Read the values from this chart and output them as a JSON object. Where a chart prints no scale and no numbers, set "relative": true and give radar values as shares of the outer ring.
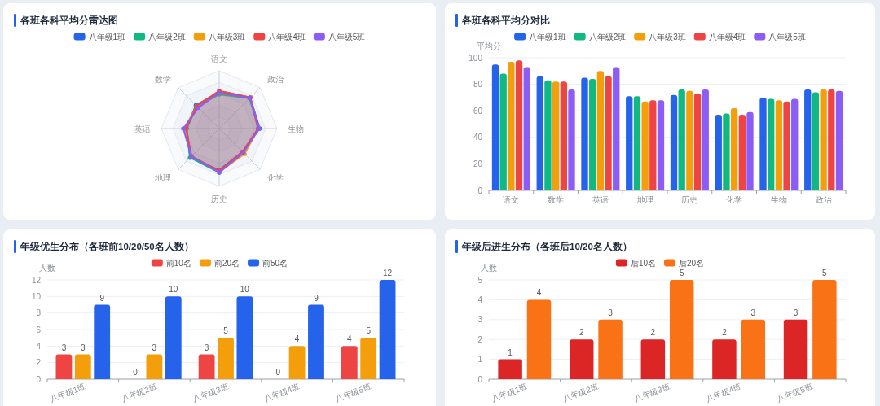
{
  "chart_data": [
    {
      "type": "radar",
      "title": "各班各科平均分雷达图",
      "categories": [
        "语文",
        "政治",
        "生物",
        "化学",
        "历史",
        "地理",
        "英语",
        "数学"
      ],
      "relative": true,
      "grid": true,
      "legend": "top",
      "marker": "circle",
      "series": [
        {
          "name": "八年级1班",
          "color": "#2563eb",
          "values": [
            0.63,
            0.76,
            0.7,
            0.57,
            0.72,
            0.71,
            0.57,
            0.57
          ]
        },
        {
          "name": "八年级2班",
          "color": "#10b981",
          "values": [
            0.59,
            0.74,
            0.69,
            0.58,
            0.76,
            0.71,
            0.56,
            0.55
          ]
        },
        {
          "name": "八年级3班",
          "color": "#f59e0b",
          "values": [
            0.65,
            0.76,
            0.68,
            0.62,
            0.75,
            0.67,
            0.6,
            0.55
          ]
        },
        {
          "name": "八年级4班",
          "color": "#ef4444",
          "values": [
            0.65,
            0.76,
            0.67,
            0.57,
            0.73,
            0.68,
            0.57,
            0.55
          ]
        },
        {
          "name": "八年级5班",
          "color": "#8b5cf6",
          "values": [
            0.62,
            0.75,
            0.69,
            0.59,
            0.76,
            0.68,
            0.62,
            0.51
          ]
        }
      ]
    },
    {
      "type": "bar",
      "title": "各班各科平均分对比",
      "ylabel": "平均分",
      "categories": [
        "语文",
        "数学",
        "英语",
        "地理",
        "历史",
        "化学",
        "生物",
        "政治"
      ],
      "ylim": [
        0,
        100
      ],
      "yticks": [
        0,
        20,
        40,
        60,
        80,
        100
      ],
      "grid": "y",
      "legend": "top",
      "series": [
        {
          "name": "八年级1班",
          "color": "#2563eb",
          "values": [
            95,
            86,
            85,
            71,
            72,
            57,
            70,
            76
          ]
        },
        {
          "name": "八年级2班",
          "color": "#10b981",
          "values": [
            88,
            83,
            84,
            71,
            76,
            58,
            69,
            74
          ]
        },
        {
          "name": "八年级3班",
          "color": "#f59e0b",
          "values": [
            97,
            82,
            90,
            67,
            75,
            62,
            68,
            76
          ]
        },
        {
          "name": "八年级4班",
          "color": "#ef4444",
          "values": [
            98,
            82,
            86,
            68,
            73,
            57,
            67,
            76
          ]
        },
        {
          "name": "八年级5班",
          "color": "#8b5cf6",
          "values": [
            93,
            76,
            93,
            68,
            76,
            59,
            69,
            75
          ]
        }
      ]
    },
    {
      "type": "bar",
      "title": "年级优生分布（各班前10/20/50名人数）",
      "ylabel": "人数",
      "categories": [
        "八年级1班",
        "八年级2班",
        "八年级3班",
        "八年级4班",
        "八年级5班"
      ],
      "ylim": [
        0,
        12
      ],
      "yticks": [
        0,
        2,
        4,
        6,
        8,
        10,
        12
      ],
      "grid": "y",
      "legend": "top",
      "data_labels": true,
      "series": [
        {
          "name": "前10名",
          "color": "#ef4444",
          "values": [
            3,
            0,
            3,
            0,
            4
          ]
        },
        {
          "name": "前20名",
          "color": "#f59e0b",
          "values": [
            3,
            3,
            5,
            4,
            5
          ]
        },
        {
          "name": "前50名",
          "color": "#2563eb",
          "values": [
            9,
            10,
            10,
            9,
            12
          ]
        }
      ]
    },
    {
      "type": "bar",
      "title": "年级后进生分布（各班后10/20名人数）",
      "ylabel": "人数",
      "categories": [
        "八年级1班",
        "八年级2班",
        "八年级3班",
        "八年级4班",
        "八年级5班"
      ],
      "ylim": [
        0,
        5
      ],
      "yticks": [
        0,
        1,
        2,
        3,
        4,
        5
      ],
      "grid": "y",
      "legend": "top",
      "data_labels": true,
      "series": [
        {
          "name": "后10名",
          "color": "#dc2626",
          "values": [
            1,
            2,
            2,
            2,
            3
          ]
        },
        {
          "name": "后20名",
          "color": "#f97316",
          "values": [
            4,
            3,
            5,
            3,
            5
          ]
        }
      ]
    }
  ]
}
